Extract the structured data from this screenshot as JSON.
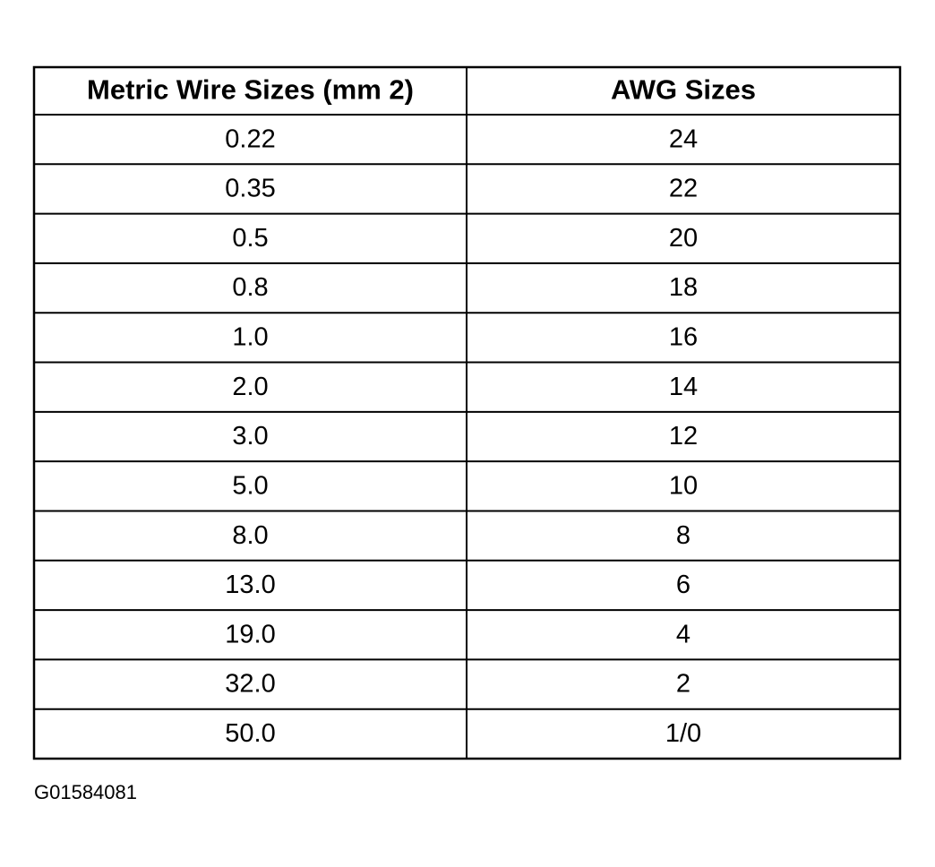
{
  "table": {
    "header": [
      "Metric Wire Sizes (mm 2)",
      "AWG Sizes"
    ],
    "rows": [
      [
        "0.22",
        "24"
      ],
      [
        "0.35",
        "22"
      ],
      [
        "0.5",
        "20"
      ],
      [
        "0.8",
        "18"
      ],
      [
        "1.0",
        "16"
      ],
      [
        "2.0",
        "14"
      ],
      [
        "3.0",
        "12"
      ],
      [
        "5.0",
        "10"
      ],
      [
        "8.0",
        "8"
      ],
      [
        "13.0",
        "6"
      ],
      [
        "19.0",
        "4"
      ],
      [
        "32.0",
        "2"
      ],
      [
        "50.0",
        "1/0"
      ]
    ]
  },
  "footer": {
    "code": "G01584081"
  }
}
